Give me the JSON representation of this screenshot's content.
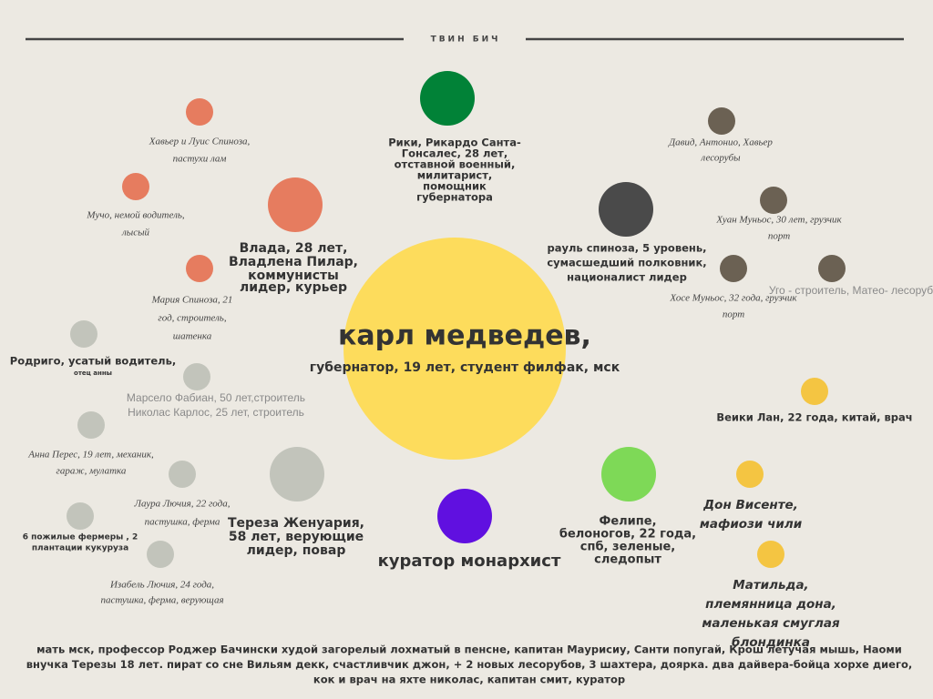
{
  "header": {
    "title": "ТВИН БИЧ"
  },
  "nodes": [
    {
      "lines": [
        "Хавьер и Луис Спиноза,",
        "пастухи лам"
      ]
    },
    {
      "lines": [
        "Мучо, немой водитель,",
        "лысый"
      ]
    },
    {
      "lines": [
        "Мария Спиноза, 21",
        "год, строитель,",
        "шатенка"
      ]
    },
    {
      "lines": [
        "Влада, 28 лет,",
        "Владлена Пилар,",
        "коммунисты",
        "лидер, курьер"
      ]
    },
    {
      "lines": [
        "Рики, Рикардо Санта-",
        "Гонсалес, 28 лет,",
        "отставной военный,",
        "милитарист,",
        "помощник",
        "губернатора"
      ]
    },
    {
      "lines": [
        "рауль спиноза, 5 уровень,",
        "сумасшедший полковник,",
        "националист лидер"
      ]
    },
    {
      "lines": [
        "Давид, Антонио, Хавьер",
        "лесорубы"
      ]
    },
    {
      "lines": [
        "Хуан Муньос, 30 лет, грузчик",
        "порт"
      ]
    },
    {
      "lines": [
        "Хосе Муньос, 32 года, грузчик",
        "порт"
      ]
    },
    {
      "lines": [
        "Уго - строитель, Матео- лесоруб"
      ]
    },
    {
      "lines": [
        "карл медведев,",
        "губернатор, 19 лет, студент филфак, мск"
      ]
    },
    {
      "lines": [
        "Родриго, усатый водитель,",
        "отец анны"
      ]
    },
    {
      "lines": [
        "Марсело Фабиан, 50 лет,строитель",
        "Николас Карлос, 25 лет, строитель"
      ]
    },
    {
      "lines": [
        "Анна Перес, 19 лет, механик,",
        "гараж, мулатка"
      ]
    },
    {
      "lines": [
        "Лаура Лючия, 22 года,",
        "пастушка, ферма"
      ]
    },
    {
      "lines": [
        "6 пожилые фермеры , 2",
        "плантации кукуруза"
      ]
    },
    {
      "lines": [
        "Изабель Лючия, 24 года,",
        "пастушка, ферма, верующая"
      ]
    },
    {
      "lines": [
        "Тереза Женуария,",
        "58 лет, верующие",
        "лидер, повар"
      ]
    },
    {
      "lines": [
        "куратор монархист"
      ]
    },
    {
      "lines": [
        "Фелипе,",
        "белоногов, 22 года,",
        "спб, зеленые,",
        "следопыт"
      ]
    },
    {
      "lines": [
        "Веики Лан, 22 года, китай, врач"
      ]
    },
    {
      "lines": [
        "Дон Висенте,",
        "мафиози чили"
      ]
    },
    {
      "lines": [
        "Матильда,",
        "племянница дона,",
        "маленькая смуглая",
        "блондинка"
      ]
    }
  ],
  "footer": {
    "lines": [
      "мать мск, профессор Роджер Бачински худой загорелый лохматый в пенсне, капитан Маурисиу, Санти попугай, Крош летучая мышь, Наоми",
      "внучка Терезы 18 лет. пират со сне Вильям декк, счастливчик джон, + 2 новых лесорубов, 3 шахтера, доярка. два дайвера-бойца хорхе диего,",
      "кок и врач на яхте николас, капитан смит, куратор"
    ]
  }
}
